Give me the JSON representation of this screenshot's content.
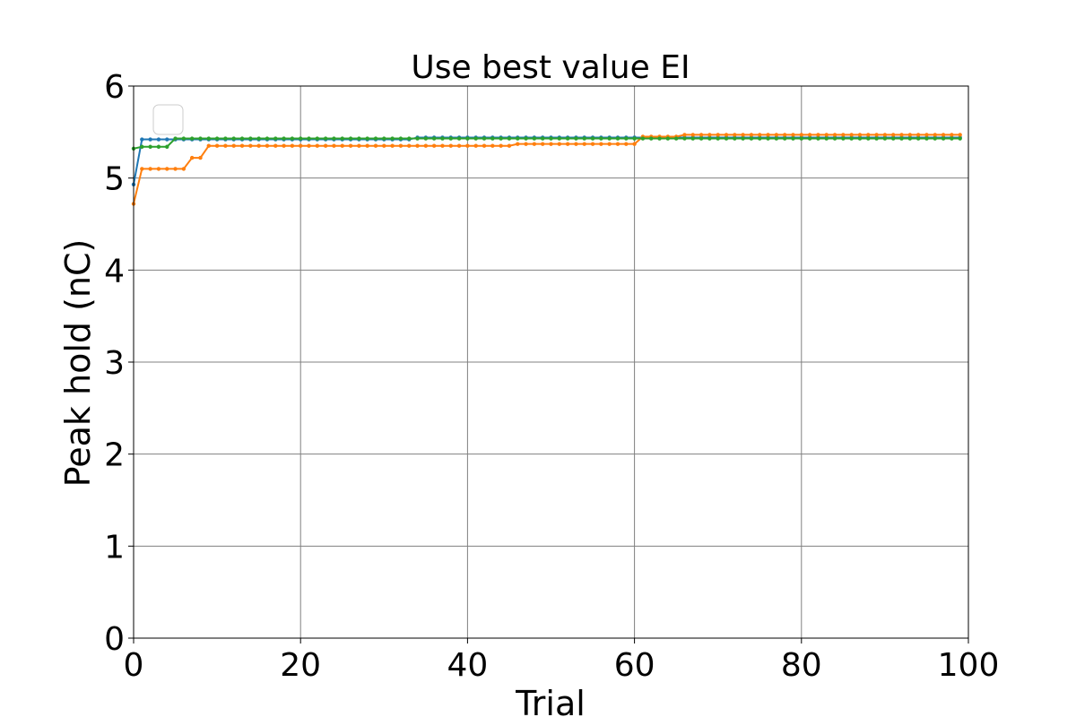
{
  "chart_data": {
    "type": "line",
    "title": "Use best value EI",
    "xlabel": "Trial",
    "ylabel": "Peak hold (nC)",
    "xlim": [
      0,
      100
    ],
    "ylim": [
      0,
      6
    ],
    "xticks": [
      0,
      20,
      40,
      60,
      80,
      100
    ],
    "yticks": [
      0,
      1,
      2,
      3,
      4,
      5,
      6
    ],
    "grid": true,
    "legend": {
      "placement": "top-left",
      "entries": []
    },
    "colors": {
      "blue": "#1f77b4",
      "orange": "#ff7f0e",
      "green": "#2ca02c",
      "grid": "#808080"
    },
    "series": [
      {
        "color": "#1f77b4",
        "segments": [
          {
            "from": 0,
            "to": 0,
            "value": 4.93
          },
          {
            "from": 1,
            "to": 33,
            "value": 5.42
          },
          {
            "from": 34,
            "to": 99,
            "value": 5.44
          }
        ]
      },
      {
        "color": "#ff7f0e",
        "segments": [
          {
            "from": 0,
            "to": 0,
            "value": 4.72
          },
          {
            "from": 1,
            "to": 6,
            "value": 5.1
          },
          {
            "from": 7,
            "to": 8,
            "value": 5.22
          },
          {
            "from": 9,
            "to": 45,
            "value": 5.35
          },
          {
            "from": 46,
            "to": 60,
            "value": 5.37
          },
          {
            "from": 61,
            "to": 65,
            "value": 5.45
          },
          {
            "from": 66,
            "to": 99,
            "value": 5.47
          }
        ]
      },
      {
        "color": "#2ca02c",
        "segments": [
          {
            "from": 0,
            "to": 0,
            "value": 5.32
          },
          {
            "from": 1,
            "to": 4,
            "value": 5.34
          },
          {
            "from": 5,
            "to": 99,
            "value": 5.43
          }
        ]
      }
    ]
  }
}
